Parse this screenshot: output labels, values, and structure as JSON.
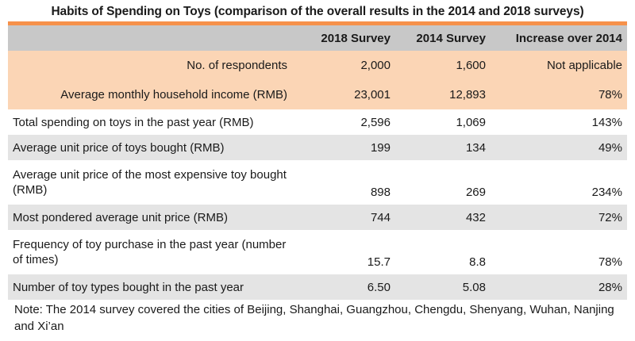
{
  "title": "Habits of Spending on Toys (comparison of the overall results in the 2014 and 2018 surveys)",
  "columns": [
    "2018 Survey",
    "2014 Survey",
    "Increase over 2014"
  ],
  "rows": [
    {
      "label": "No. of respondents",
      "v2018": "2,000",
      "v2014": "1,600",
      "increase": "Not applicable"
    },
    {
      "label": "Average monthly household income (RMB)",
      "v2018": "23,001",
      "v2014": "12,893",
      "increase": "78%"
    },
    {
      "label": "Total spending on toys in the past year (RMB)",
      "v2018": "2,596",
      "v2014": "1,069",
      "increase": "143%"
    },
    {
      "label": "Average unit price of toys bought (RMB)",
      "v2018": "199",
      "v2014": "134",
      "increase": "49%"
    },
    {
      "label": "Average unit price of the most expensive toy bought (RMB)",
      "v2018": "898",
      "v2014": "269",
      "increase": "234%"
    },
    {
      "label": "Most pondered average unit price (RMB)",
      "v2018": "744",
      "v2014": "432",
      "increase": "72%"
    },
    {
      "label": "Frequency of toy purchase in the past year (number of times)",
      "v2018": "15.7",
      "v2014": "8.8",
      "increase": "78%"
    },
    {
      "label": "Number of toy types bought in the past year",
      "v2018": "6.50",
      "v2014": "5.08",
      "increase": "28%"
    }
  ],
  "note": "Note: The 2014 survey covered the cities of Beijing, Shanghai, Guangzhou, Chengdu, Shenyang, Wuhan, Nanjing and Xi’an",
  "colors": {
    "header_bg": "#c8c8c8",
    "highlight_bg": "#fbd5b5",
    "stripe_bg": "#e4e4e4",
    "accent_rule": "#f6914a"
  }
}
